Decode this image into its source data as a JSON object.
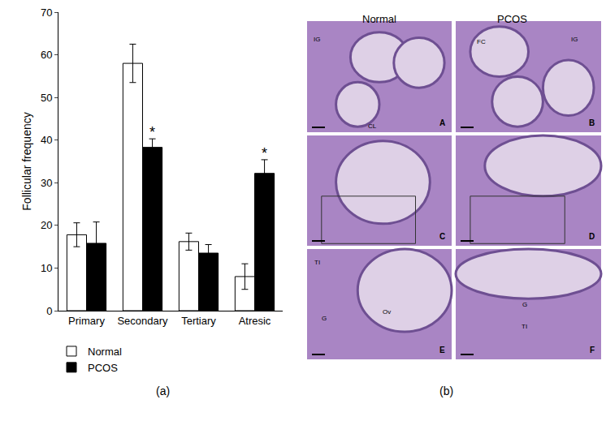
{
  "chart_data": {
    "type": "bar",
    "title": "(a)",
    "y_label": "Follicular frequency",
    "categories": [
      "Primary",
      "Secondary",
      "Tertiary",
      "Atresic"
    ],
    "series": [
      {
        "name": "Normal",
        "color": "#ffffff",
        "values": [
          17.8,
          58.0,
          16.2,
          8.0
        ],
        "errors": [
          2.8,
          4.5,
          2.0,
          3.0
        ]
      },
      {
        "name": "PCOS",
        "color": "#000000",
        "values": [
          15.8,
          38.3,
          13.5,
          32.2
        ],
        "errors": [
          5.0,
          2.0,
          2.0,
          3.2
        ]
      }
    ],
    "annotations": [
      {
        "text": "*",
        "category": "Secondary",
        "series": "PCOS"
      },
      {
        "text": "*",
        "category": "Atresic",
        "series": "PCOS"
      }
    ],
    "ylim": [
      0,
      70
    ],
    "yticks": [
      0,
      10,
      20,
      30,
      40,
      50,
      60,
      70
    ],
    "grid": false,
    "legend": "bottom left"
  },
  "panel_b": {
    "title": "(b)",
    "columns": [
      "Normal",
      "PCOS"
    ],
    "panels": [
      {
        "letter": "A",
        "labels": [
          "IG",
          "CL"
        ]
      },
      {
        "letter": "B",
        "labels": [
          "FC",
          "IG"
        ]
      },
      {
        "letter": "C",
        "labels": []
      },
      {
        "letter": "D",
        "labels": []
      },
      {
        "letter": "E",
        "labels": [
          "TI",
          "G",
          "Ov"
        ]
      },
      {
        "letter": "F",
        "labels": [
          "G",
          "TI"
        ]
      }
    ]
  }
}
